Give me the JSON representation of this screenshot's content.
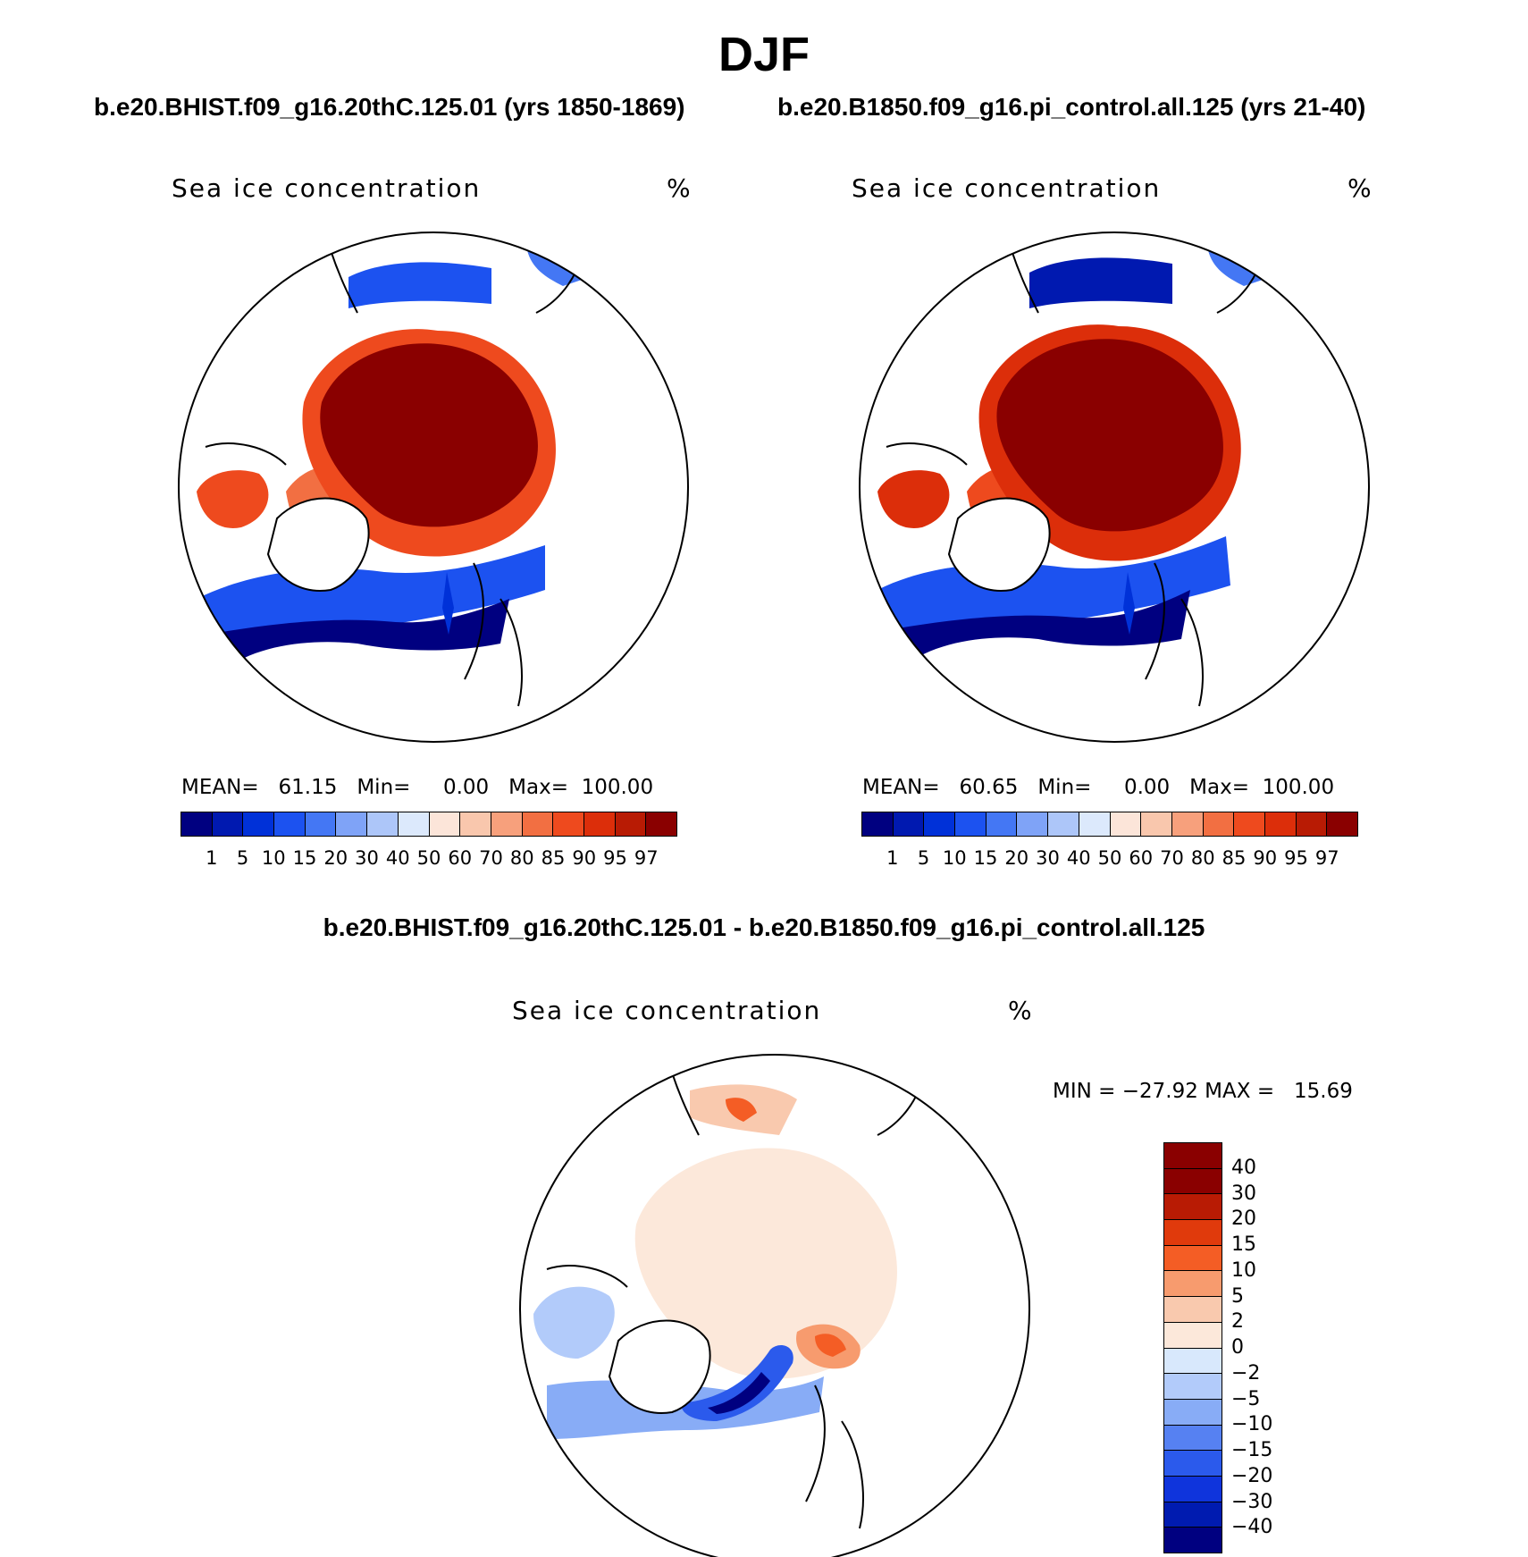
{
  "title": "DJF",
  "case_a_title": "b.e20.BHIST.f09_g16.20thC.125.01 (yrs 1850-1869)",
  "case_b_title": "b.e20.B1850.f09_g16.pi_control.all.125 (yrs 21-40)",
  "diff_title": "b.e20.BHIST.f09_g16.20thC.125.01 - b.e20.B1850.f09_g16.pi_control.all.125",
  "panels": {
    "left": {
      "variable": "Sea ice concentration",
      "units": "%",
      "stats": {
        "mean_label": "MEAN=",
        "mean": "61.15",
        "min_label": "Min=",
        "min": "0.00",
        "max_label": "Max=",
        "max": "100.00"
      }
    },
    "right": {
      "variable": "Sea ice concentration",
      "units": "%",
      "stats": {
        "mean_label": "MEAN=",
        "mean": "60.65",
        "min_label": "Min=",
        "min": "0.00",
        "max_label": "Max=",
        "max": "100.00"
      }
    },
    "diff": {
      "variable": "Sea ice concentration",
      "units": "%",
      "stats": {
        "min_label": "MIN =",
        "min": "−27.92",
        "max_label": "MAX =",
        "max": "15.69"
      }
    }
  },
  "colorbar_abs": {
    "colors": [
      "#000080",
      "#0019B0",
      "#0031D8",
      "#1C52F0",
      "#4477F4",
      "#7FA3F7",
      "#ADC6F9",
      "#DCE9FC",
      "#FCE5D9",
      "#F9C7AD",
      "#F7A07C",
      "#F26F42",
      "#EE4A1E",
      "#DC2E0A",
      "#B81B04",
      "#8A0000"
    ],
    "labels": [
      "1",
      "5",
      "10",
      "15",
      "20",
      "30",
      "40",
      "50",
      "60",
      "70",
      "80",
      "85",
      "90",
      "95",
      "97"
    ]
  },
  "colorbar_diff": {
    "colors": [
      "#8A0000",
      "#B81B04",
      "#E03A0C",
      "#F45D25",
      "#F79B6E",
      "#F9C9AE",
      "#FCE8DA",
      "#D8E8FC",
      "#B2CBFA",
      "#88ACF6",
      "#5681F2",
      "#2B5AEC",
      "#0F34DC",
      "#001BB0",
      "#000080"
    ],
    "labels": [
      "40",
      "30",
      "20",
      "15",
      "10",
      "5",
      "2",
      "0",
      "−2",
      "−5",
      "−10",
      "−15",
      "−20",
      "−30",
      "−40"
    ]
  },
  "chart_data": [
    {
      "type": "heatmap",
      "projection": "north-polar-stereographic",
      "title": "Sea ice concentration",
      "units": "%",
      "case": "b.e20.BHIST.f09_g16.20thC.125.01 (yrs 1850-1869)",
      "season": "DJF",
      "mean": 61.15,
      "min": 0.0,
      "max": 100.0,
      "contour_levels": [
        1,
        5,
        10,
        15,
        20,
        30,
        40,
        50,
        60,
        70,
        80,
        85,
        90,
        95,
        97
      ]
    },
    {
      "type": "heatmap",
      "projection": "north-polar-stereographic",
      "title": "Sea ice concentration",
      "units": "%",
      "case": "b.e20.B1850.f09_g16.pi_control.all.125 (yrs 21-40)",
      "season": "DJF",
      "mean": 60.65,
      "min": 0.0,
      "max": 100.0,
      "contour_levels": [
        1,
        5,
        10,
        15,
        20,
        30,
        40,
        50,
        60,
        70,
        80,
        85,
        90,
        95,
        97
      ]
    },
    {
      "type": "heatmap",
      "projection": "north-polar-stereographic",
      "title": "Sea ice concentration",
      "units": "%",
      "case": "b.e20.BHIST.f09_g16.20thC.125.01 - b.e20.B1850.f09_g16.pi_control.all.125",
      "season": "DJF",
      "min": -27.92,
      "max": 15.69,
      "contour_levels": [
        -40,
        -30,
        -20,
        -15,
        -10,
        -5,
        -2,
        0,
        2,
        5,
        10,
        15,
        20,
        30,
        40
      ]
    }
  ]
}
